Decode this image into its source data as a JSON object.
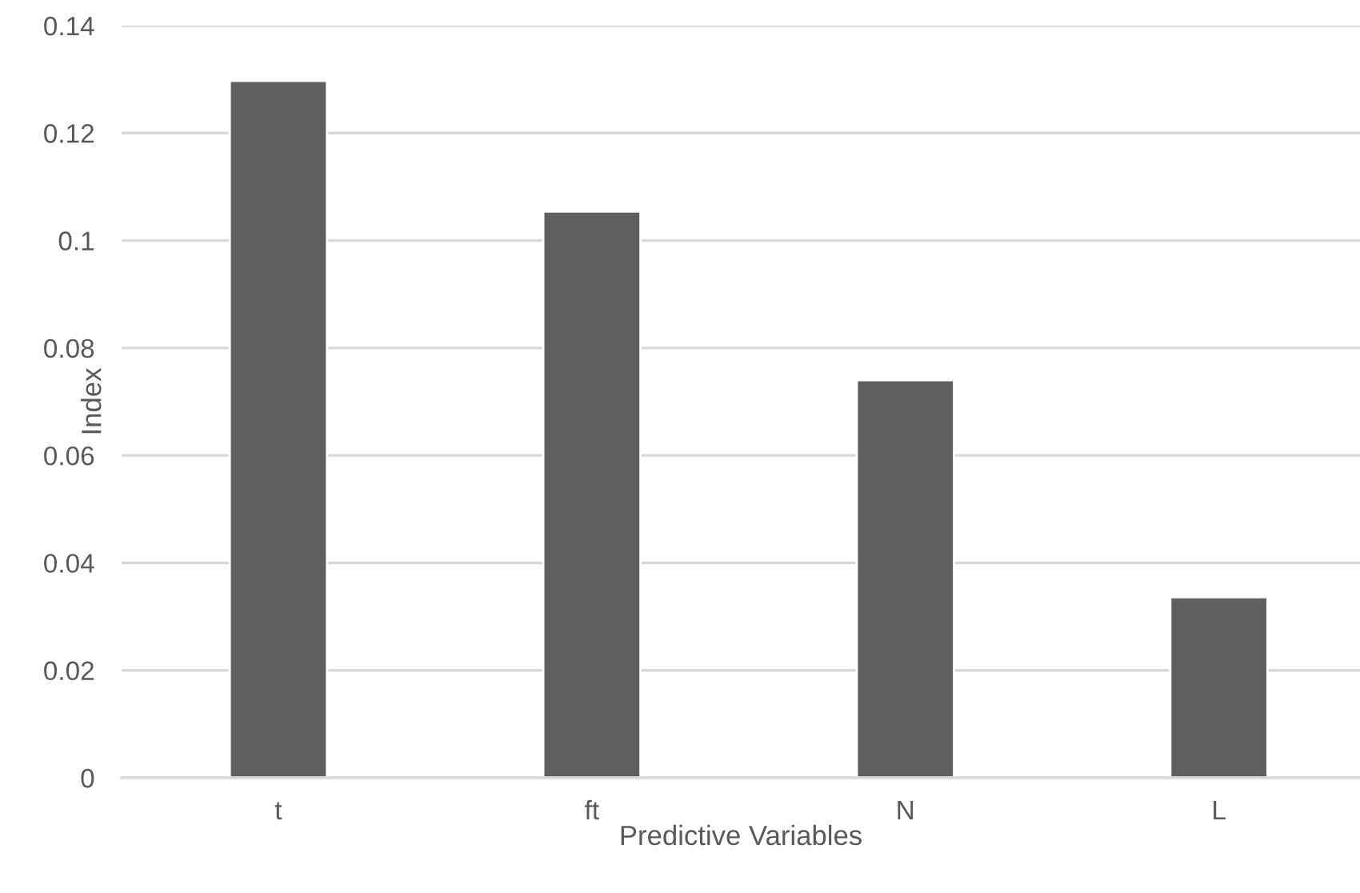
{
  "chart_data": {
    "type": "bar",
    "xlabel": "Predictive Variables",
    "ylabel": "Index",
    "categories": [
      "t",
      "ft",
      "N",
      "L"
    ],
    "values": [
      0.1297,
      0.1054,
      0.074,
      0.0336
    ],
    "color": "#5f5f5f",
    "ylim": [
      0,
      0.14
    ],
    "yticks": [
      0,
      0.02,
      0.04,
      0.06,
      0.08,
      {
        "value": 0.1,
        "label": "0.1"
      },
      0.12,
      0.14
    ],
    "grid": "y",
    "legend": false
  }
}
